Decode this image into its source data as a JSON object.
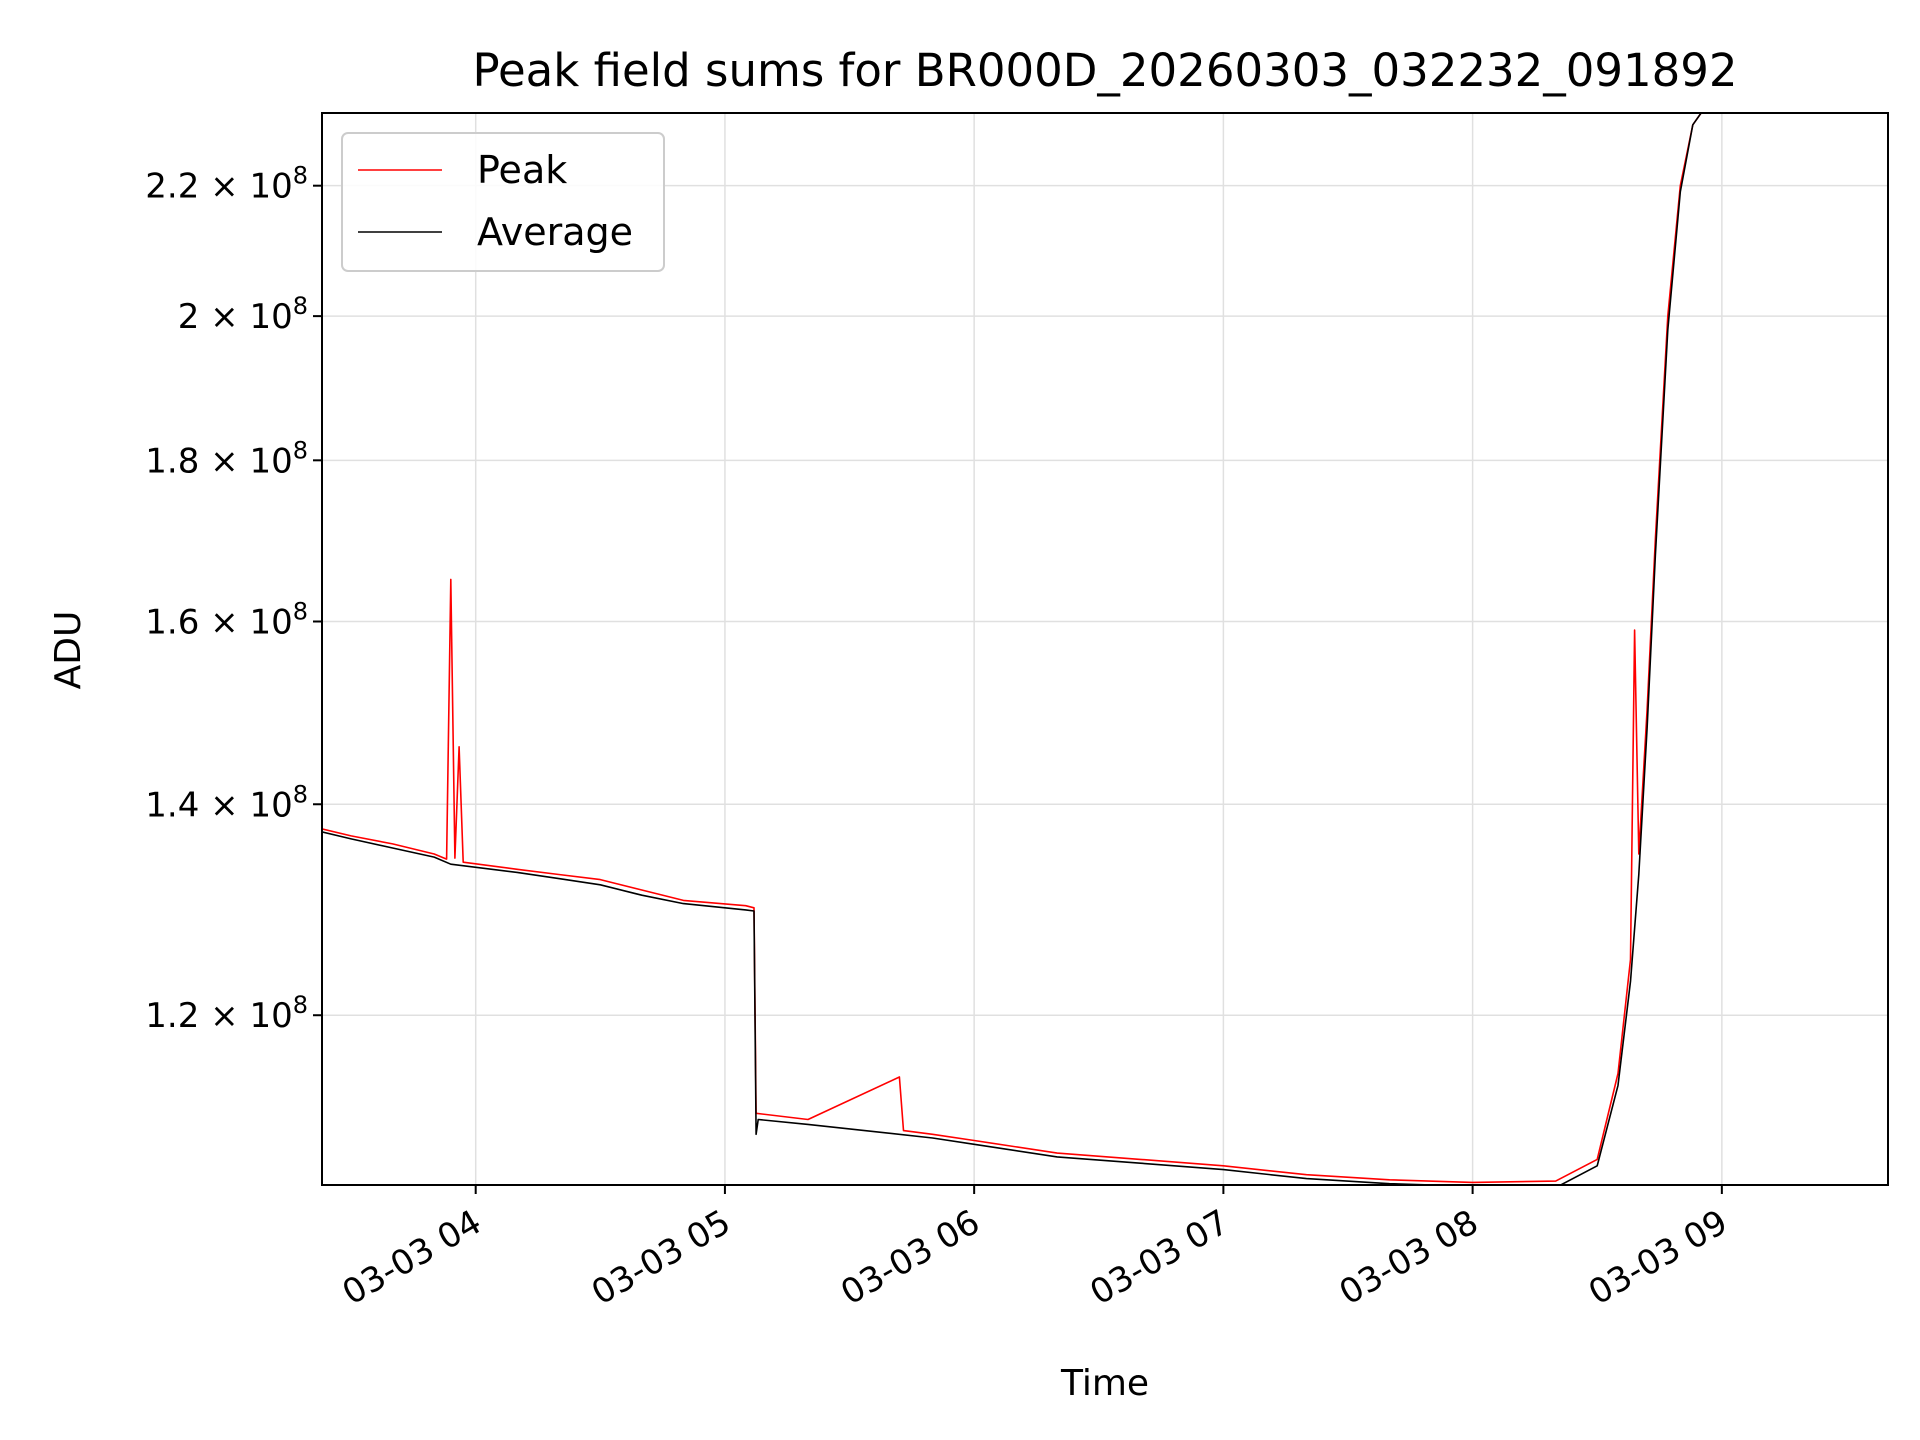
{
  "chart_data": {
    "type": "line",
    "title": "Peak field sums for BR000D_20260303_032232_091892",
    "xlabel": "Time",
    "ylabel": "ADU",
    "y_scale": "log",
    "grid": true,
    "legend_position": "top-left",
    "xlim": [
      "03-03 03:23",
      "03-03 09:40"
    ],
    "ylim": [
      106000000.0,
      232000000.0
    ],
    "x_ticks": [
      {
        "t": "03-03 04:00",
        "label": "03-03 04"
      },
      {
        "t": "03-03 05:00",
        "label": "03-03 05"
      },
      {
        "t": "03-03 06:00",
        "label": "03-03 06"
      },
      {
        "t": "03-03 07:00",
        "label": "03-03 07"
      },
      {
        "t": "03-03 08:00",
        "label": "03-03 08"
      },
      {
        "t": "03-03 09:00",
        "label": "03-03 09"
      }
    ],
    "y_ticks": [
      {
        "value": 120000000.0,
        "mantissa": "1.2",
        "exponent": "8"
      },
      {
        "value": 140000000.0,
        "mantissa": "1.4",
        "exponent": "8"
      },
      {
        "value": 160000000.0,
        "mantissa": "1.6",
        "exponent": "8"
      },
      {
        "value": 180000000.0,
        "mantissa": "1.8",
        "exponent": "8"
      },
      {
        "value": 200000000.0,
        "mantissa": "2",
        "exponent": "8"
      },
      {
        "value": 220000000.0,
        "mantissa": "2.2",
        "exponent": "8"
      }
    ],
    "series": [
      {
        "name": "Peak",
        "color": "#ff0000",
        "points": [
          {
            "t": "03-03 03:23",
            "v": 137500000.0
          },
          {
            "t": "03-03 03:30",
            "v": 136800000.0
          },
          {
            "t": "03-03 03:40",
            "v": 136000000.0
          },
          {
            "t": "03-03 03:50",
            "v": 135000000.0
          },
          {
            "t": "03-03 03:53",
            "v": 134500000.0
          },
          {
            "t": "03-03 03:54",
            "v": 165000000.0
          },
          {
            "t": "03-03 03:55",
            "v": 134600000.0
          },
          {
            "t": "03-03 03:56",
            "v": 146000000.0
          },
          {
            "t": "03-03 03:57",
            "v": 134200000.0
          },
          {
            "t": "03-03 04:10",
            "v": 133500000.0
          },
          {
            "t": "03-03 04:20",
            "v": 133000000.0
          },
          {
            "t": "03-03 04:30",
            "v": 132500000.0
          },
          {
            "t": "03-03 04:40",
            "v": 131500000.0
          },
          {
            "t": "03-03 04:50",
            "v": 130500000.0
          },
          {
            "t": "03-03 05:05",
            "v": 130000000.0
          },
          {
            "t": "03-03 05:07",
            "v": 129800000.0
          },
          {
            "t": "03-03 05:07.5",
            "v": 111700000.0
          },
          {
            "t": "03-03 05:20",
            "v": 111200000.0
          },
          {
            "t": "03-03 05:42",
            "v": 114700000.0
          },
          {
            "t": "03-03 05:43",
            "v": 110300000.0
          },
          {
            "t": "03-03 05:50",
            "v": 110000000.0
          },
          {
            "t": "03-03 06:00",
            "v": 109500000.0
          },
          {
            "t": "03-03 06:20",
            "v": 108500000.0
          },
          {
            "t": "03-03 06:40",
            "v": 108000000.0
          },
          {
            "t": "03-03 07:00",
            "v": 107500000.0
          },
          {
            "t": "03-03 07:20",
            "v": 106800000.0
          },
          {
            "t": "03-03 07:40",
            "v": 106400000.0
          },
          {
            "t": "03-03 08:00",
            "v": 106200000.0
          },
          {
            "t": "03-03 08:20",
            "v": 106300000.0
          },
          {
            "t": "03-03 08:30",
            "v": 108000000.0
          },
          {
            "t": "03-03 08:35",
            "v": 115000000.0
          },
          {
            "t": "03-03 08:38",
            "v": 125000000.0
          },
          {
            "t": "03-03 08:39",
            "v": 159000000.0
          },
          {
            "t": "03-03 08:40",
            "v": 135000000.0
          },
          {
            "t": "03-03 08:42",
            "v": 150000000.0
          },
          {
            "t": "03-03 08:44",
            "v": 170000000.0
          },
          {
            "t": "03-03 08:47",
            "v": 200000000.0
          },
          {
            "t": "03-03 08:50",
            "v": 220000000.0
          },
          {
            "t": "03-03 08:53",
            "v": 230000000.0
          },
          {
            "t": "03-03 08:55",
            "v": 232000000.0
          }
        ]
      },
      {
        "name": "Average",
        "color": "#000000",
        "points": [
          {
            "t": "03-03 03:23",
            "v": 137200000.0
          },
          {
            "t": "03-03 03:30",
            "v": 136500000.0
          },
          {
            "t": "03-03 03:40",
            "v": 135600000.0
          },
          {
            "t": "03-03 03:50",
            "v": 134700000.0
          },
          {
            "t": "03-03 03:54",
            "v": 134000000.0
          },
          {
            "t": "03-03 04:10",
            "v": 133200000.0
          },
          {
            "t": "03-03 04:20",
            "v": 132600000.0
          },
          {
            "t": "03-03 04:30",
            "v": 132000000.0
          },
          {
            "t": "03-03 04:40",
            "v": 131000000.0
          },
          {
            "t": "03-03 04:50",
            "v": 130200000.0
          },
          {
            "t": "03-03 05:05",
            "v": 129600000.0
          },
          {
            "t": "03-03 05:07",
            "v": 129500000.0
          },
          {
            "t": "03-03 05:07.5",
            "v": 110000000.0
          },
          {
            "t": "03-03 05:08",
            "v": 111200000.0
          },
          {
            "t": "03-03 05:20",
            "v": 110800000.0
          },
          {
            "t": "03-03 05:50",
            "v": 109700000.0
          },
          {
            "t": "03-03 06:00",
            "v": 109200000.0
          },
          {
            "t": "03-03 06:20",
            "v": 108200000.0
          },
          {
            "t": "03-03 06:40",
            "v": 107700000.0
          },
          {
            "t": "03-03 07:00",
            "v": 107200000.0
          },
          {
            "t": "03-03 07:20",
            "v": 106500000.0
          },
          {
            "t": "03-03 07:40",
            "v": 106100000.0
          },
          {
            "t": "03-03 08:00",
            "v": 105900000.0
          },
          {
            "t": "03-03 08:20",
            "v": 105800000.0
          },
          {
            "t": "03-03 08:30",
            "v": 107500000.0
          },
          {
            "t": "03-03 08:35",
            "v": 114000000.0
          },
          {
            "t": "03-03 08:38",
            "v": 123000000.0
          },
          {
            "t": "03-03 08:40",
            "v": 133000000.0
          },
          {
            "t": "03-03 08:42",
            "v": 148000000.0
          },
          {
            "t": "03-03 08:44",
            "v": 168000000.0
          },
          {
            "t": "03-03 08:47",
            "v": 198000000.0
          },
          {
            "t": "03-03 08:50",
            "v": 219000000.0
          },
          {
            "t": "03-03 08:53",
            "v": 230000000.0
          },
          {
            "t": "03-03 08:55",
            "v": 232000000.0
          }
        ]
      }
    ]
  }
}
